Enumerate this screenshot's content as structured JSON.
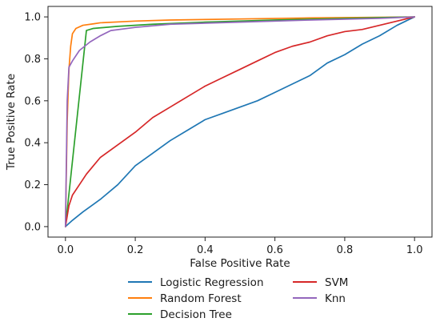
{
  "chart_data": {
    "type": "line",
    "title": "",
    "xlabel": "False Positive Rate",
    "ylabel": "True Positive Rate",
    "xlim": [
      -0.05,
      1.05
    ],
    "ylim": [
      -0.05,
      1.05
    ],
    "xticks": [
      0.0,
      0.2,
      0.4,
      0.6,
      0.8,
      1.0
    ],
    "yticks": [
      0.0,
      0.2,
      0.4,
      0.6,
      0.8,
      1.0
    ],
    "xtick_labels": [
      "0.0",
      "0.2",
      "0.4",
      "0.6",
      "0.8",
      "1.0"
    ],
    "ytick_labels": [
      "0.0",
      "0.2",
      "0.4",
      "0.6",
      "0.8",
      "1.0"
    ],
    "grid": false,
    "legend_position": "below",
    "series": [
      {
        "name": "Logistic Regression",
        "color": "#1f77b4",
        "x": [
          0,
          0.02,
          0.05,
          0.1,
          0.15,
          0.2,
          0.25,
          0.3,
          0.35,
          0.4,
          0.45,
          0.5,
          0.55,
          0.6,
          0.65,
          0.7,
          0.75,
          0.8,
          0.85,
          0.9,
          0.95,
          1.0
        ],
        "y": [
          0,
          0.03,
          0.07,
          0.13,
          0.2,
          0.29,
          0.35,
          0.41,
          0.46,
          0.51,
          0.54,
          0.57,
          0.6,
          0.64,
          0.68,
          0.72,
          0.78,
          0.82,
          0.87,
          0.91,
          0.96,
          1.0
        ]
      },
      {
        "name": "Random Forest",
        "color": "#ff7f0e",
        "x": [
          0,
          0.005,
          0.01,
          0.015,
          0.02,
          0.03,
          0.05,
          0.08,
          0.1,
          0.2,
          0.3,
          0.5,
          0.7,
          0.9,
          1.0
        ],
        "y": [
          0,
          0.5,
          0.75,
          0.86,
          0.92,
          0.945,
          0.96,
          0.967,
          0.972,
          0.98,
          0.985,
          0.99,
          0.995,
          0.998,
          1.0
        ]
      },
      {
        "name": "Decision Tree",
        "color": "#2ca02c",
        "x": [
          0,
          0.06,
          0.08,
          0.15,
          0.25,
          0.4,
          0.6,
          0.8,
          1.0
        ],
        "y": [
          0,
          0.935,
          0.945,
          0.955,
          0.965,
          0.975,
          0.985,
          0.993,
          1.0
        ]
      },
      {
        "name": "SVM",
        "color": "#d62728",
        "x": [
          0,
          0.01,
          0.02,
          0.04,
          0.06,
          0.08,
          0.1,
          0.15,
          0.2,
          0.25,
          0.3,
          0.35,
          0.4,
          0.45,
          0.5,
          0.55,
          0.6,
          0.65,
          0.7,
          0.75,
          0.8,
          0.85,
          0.9,
          0.95,
          1.0
        ],
        "y": [
          0,
          0.1,
          0.15,
          0.2,
          0.25,
          0.29,
          0.33,
          0.39,
          0.45,
          0.52,
          0.57,
          0.62,
          0.67,
          0.71,
          0.75,
          0.79,
          0.83,
          0.86,
          0.88,
          0.91,
          0.93,
          0.94,
          0.96,
          0.98,
          1.0
        ]
      },
      {
        "name": "Knn",
        "color": "#9467bd",
        "x": [
          0,
          0.005,
          0.01,
          0.02,
          0.04,
          0.07,
          0.1,
          0.13,
          0.2,
          0.3,
          0.5,
          0.7,
          0.9,
          1.0
        ],
        "y": [
          0,
          0.6,
          0.76,
          0.79,
          0.84,
          0.88,
          0.91,
          0.935,
          0.95,
          0.965,
          0.975,
          0.985,
          0.993,
          1.0
        ]
      }
    ]
  }
}
